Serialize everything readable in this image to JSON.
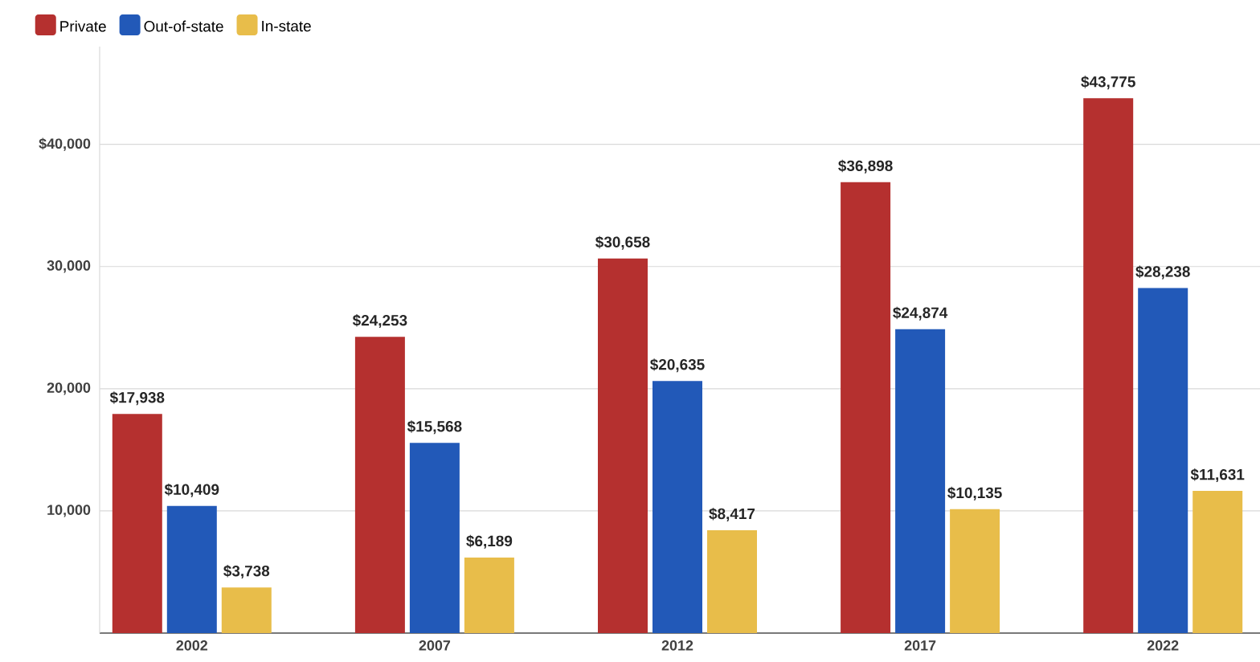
{
  "chart_data": {
    "type": "bar",
    "categories": [
      "2002",
      "2007",
      "2012",
      "2017",
      "2022"
    ],
    "series": [
      {
        "name": "Private",
        "color": "#b5302f",
        "values": [
          17938,
          24253,
          30658,
          36898,
          43775
        ],
        "value_labels": [
          "$17,938",
          "$24,253",
          "$30,658",
          "$36,898",
          "$43,775"
        ]
      },
      {
        "name": "Out-of-state",
        "color": "#2259b8",
        "values": [
          10409,
          15568,
          20635,
          24874,
          28238
        ],
        "value_labels": [
          "$10,409",
          "$15,568",
          "$20,635",
          "$24,874",
          "$28,238"
        ]
      },
      {
        "name": "In-state",
        "color": "#e8bd4a",
        "values": [
          3738,
          6189,
          8417,
          10135,
          11631
        ],
        "value_labels": [
          "$3,738",
          "$6,189",
          "$8,417",
          "$10,135",
          "$11,631"
        ]
      }
    ],
    "ylim": [
      0,
      48000
    ],
    "yticks": [
      {
        "value": 10000,
        "label": "10,000"
      },
      {
        "value": 20000,
        "label": "20,000"
      },
      {
        "value": 30000,
        "label": "30,000"
      },
      {
        "value": 40000,
        "label": "$40,000"
      }
    ],
    "grid": "y",
    "legend": "top left"
  }
}
